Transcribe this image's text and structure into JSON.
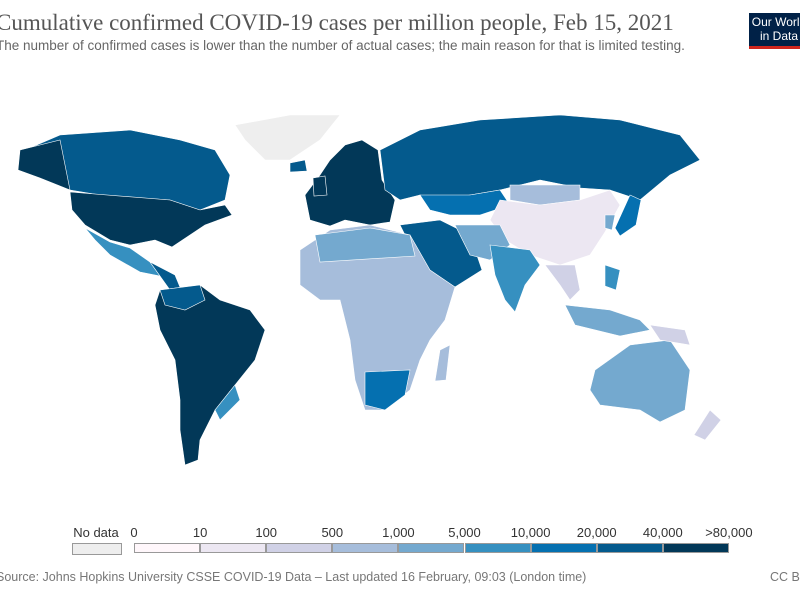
{
  "header": {
    "title": "Cumulative confirmed COVID-19 cases per million people, Feb 15, 2021",
    "subtitle": "The number of confirmed cases is lower than the number of actual cases; the main reason for that is limited testing.",
    "logo": "Our World in Data"
  },
  "legend": {
    "no_data_label": "No data",
    "no_data_color": "#eeeeee",
    "ticks": [
      "0",
      "10",
      "100",
      "500",
      "1,000",
      "5,000",
      "10,000",
      "20,000",
      "40,000",
      ">80,000"
    ],
    "colors": [
      "#fff7fb",
      "#ece7f2",
      "#d0d1e6",
      "#a6bddb",
      "#74a9cf",
      "#3690c0",
      "#0570b0",
      "#045a8d",
      "#023858"
    ]
  },
  "footer": {
    "source": "Source: Johns Hopkins University CSSE COVID-19 Data – Last updated 16 February, 09:03 (London time)",
    "license": "CC BY"
  }
}
